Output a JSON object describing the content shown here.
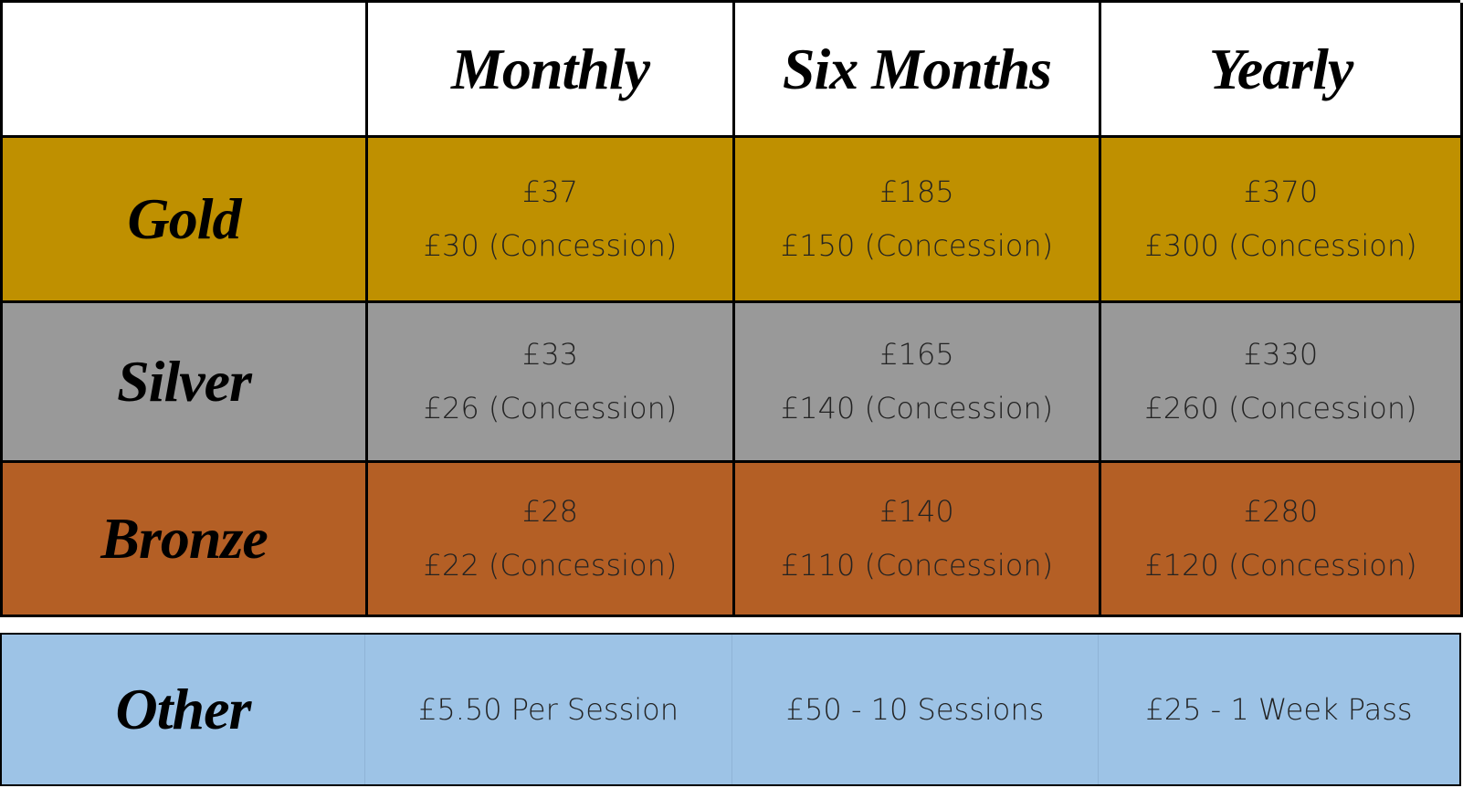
{
  "header": {
    "columns": [
      "Monthly",
      "Six Months",
      "Yearly"
    ]
  },
  "table": {
    "rows": [
      {
        "label": "Gold",
        "cells": [
          [
            "£37",
            "£30 (Concession)"
          ],
          [
            "£185",
            "£150 (Concession)"
          ],
          [
            "£370",
            "£300 (Concession)"
          ]
        ]
      },
      {
        "label": "Silver",
        "cells": [
          [
            "£33",
            "£26 (Concession)"
          ],
          [
            "£165",
            "£140 (Concession)"
          ],
          [
            "£330",
            "£260 (Concession)"
          ]
        ]
      },
      {
        "label": "Bronze",
        "cells": [
          [
            "£28",
            "£22 (Concession)"
          ],
          [
            "£140",
            "£110 (Concession)"
          ],
          [
            "£280",
            "£120 (Concession)"
          ]
        ]
      }
    ]
  },
  "other": {
    "label": "Other",
    "cells": [
      "£5.50 Per Session",
      "£50 - 10 Sessions",
      "£25 - 1 Week Pass"
    ]
  }
}
